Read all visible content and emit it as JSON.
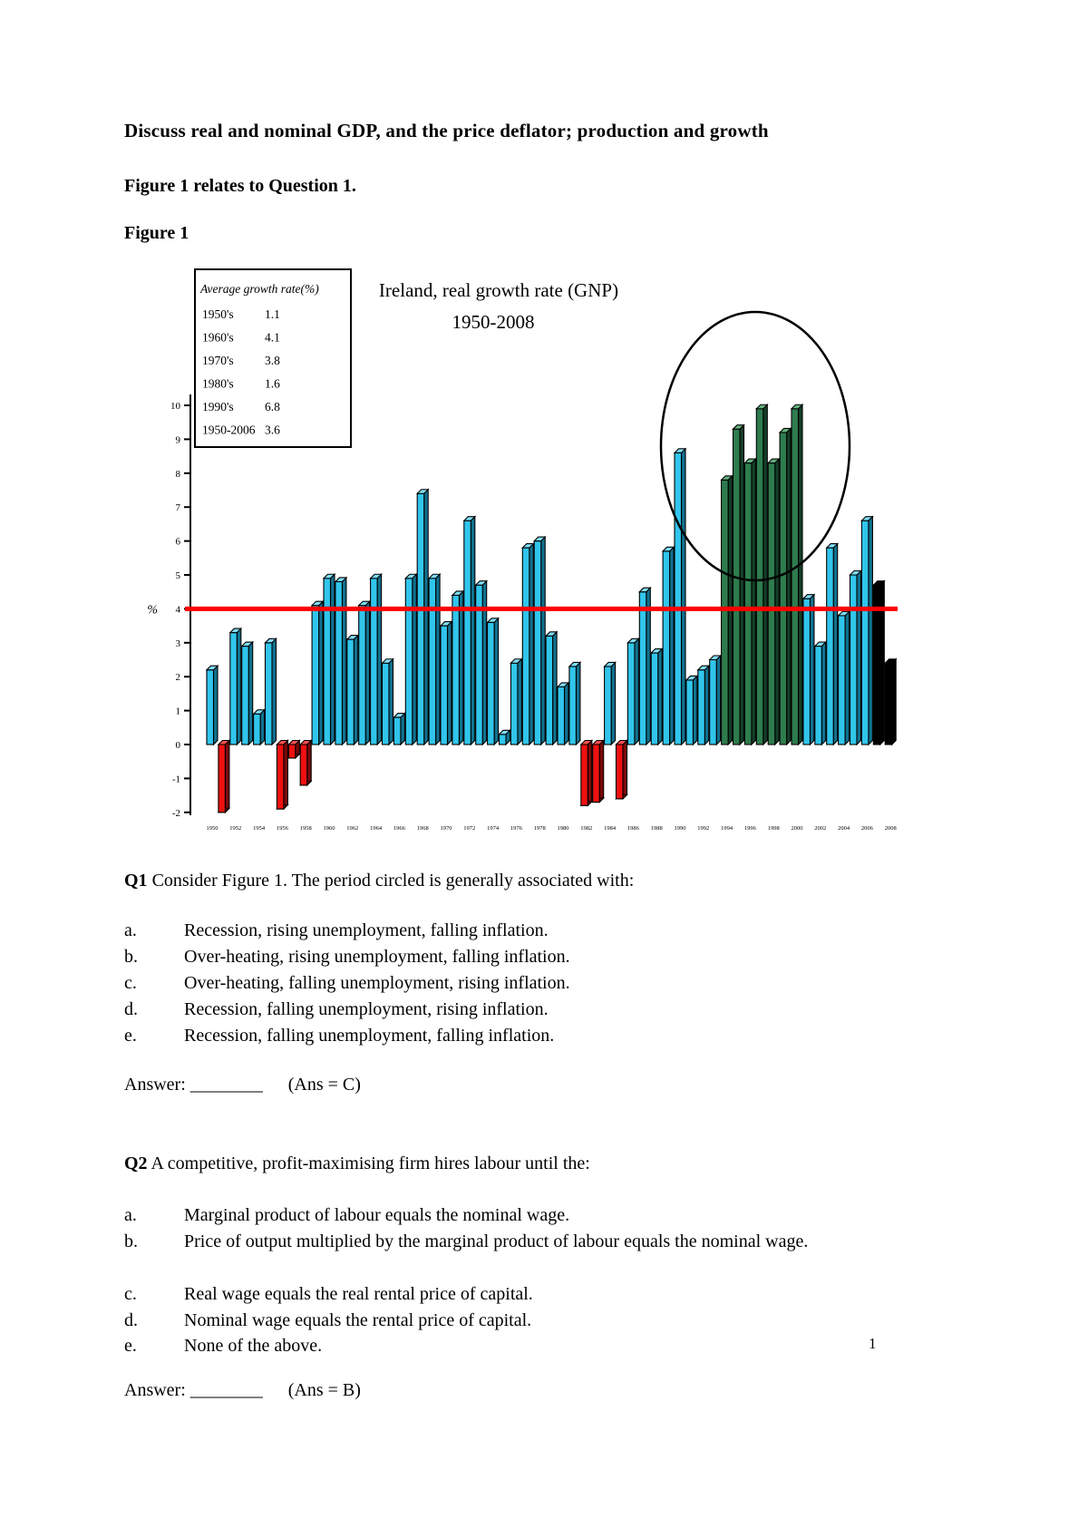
{
  "page": {
    "heading": "Discuss real and nominal GDP, and the price deflator; production and growth",
    "subheading": "Figure 1 relates to Question 1.",
    "figure_label": "Figure 1",
    "page_number": "1"
  },
  "chart": {
    "title_line1": "Ireland, real growth rate (GNP)",
    "title_line2": "1950-2008",
    "y_axis_unit": "%",
    "legend": {
      "header": "Average growth rate(%)",
      "rows": [
        {
          "label": "1950's",
          "value": "1.1"
        },
        {
          "label": "1960's",
          "value": "4.1"
        },
        {
          "label": "1970's",
          "value": "3.8"
        },
        {
          "label": "1980's",
          "value": "1.6"
        },
        {
          "label": "1990's",
          "value": "6.8"
        },
        {
          "label": "1950-2006",
          "value": "3.6"
        }
      ]
    },
    "colors": {
      "cyan": {
        "front": "#31C5EC",
        "side": "#11718F",
        "top": "#7FDDF4"
      },
      "red": {
        "front": "#EE1010",
        "side": "#7C0808",
        "top": "#F4504E"
      },
      "green": {
        "front": "#2E7C4E",
        "side": "#143F27",
        "top": "#63B07E"
      },
      "black": {
        "front": "#000000",
        "side": "#000000",
        "top": "#000000"
      },
      "reference_line": "#FF0000",
      "annotation_circle": "#000000"
    }
  },
  "chart_data": {
    "type": "bar",
    "title": "Ireland, real growth rate (GNP) 1950-2008",
    "xlabel": "",
    "ylabel": "%",
    "ylim": [
      -2,
      10
    ],
    "grid": false,
    "legend_position": "top-left",
    "reference_line": {
      "value": 4,
      "color": "red",
      "meaning": "1950-2006 average growth ~4%"
    },
    "circled_period": "1994-2000 boom (green bars circled)",
    "start_year": 1950,
    "y_ticks": [
      10,
      9,
      8,
      7,
      6,
      5,
      4,
      3,
      2,
      1,
      0,
      -1,
      -2
    ],
    "x_ticks": [
      "1950",
      "1952",
      "1954",
      "1956",
      "1958",
      "1960",
      "1962",
      "1964",
      "1966",
      "1968",
      "1970",
      "1972",
      "1974",
      "1976",
      "1978",
      "1980",
      "1982",
      "1984",
      "1986",
      "1988",
      "1990",
      "1992",
      "1994",
      "1996",
      "1998",
      "2000",
      "2002",
      "2004",
      "2006",
      "2008"
    ],
    "bars": [
      {
        "year": 1950,
        "value": 2.2,
        "color": "cyan"
      },
      {
        "year": 1951,
        "value": -2.0,
        "color": "red"
      },
      {
        "year": 1952,
        "value": 3.3,
        "color": "cyan"
      },
      {
        "year": 1953,
        "value": 2.9,
        "color": "cyan"
      },
      {
        "year": 1954,
        "value": 0.9,
        "color": "cyan"
      },
      {
        "year": 1955,
        "value": 3.0,
        "color": "cyan"
      },
      {
        "year": 1956,
        "value": -1.9,
        "color": "red"
      },
      {
        "year": 1957,
        "value": -0.4,
        "color": "red"
      },
      {
        "year": 1958,
        "value": -1.2,
        "color": "red"
      },
      {
        "year": 1959,
        "value": 4.1,
        "color": "cyan"
      },
      {
        "year": 1960,
        "value": 4.9,
        "color": "cyan"
      },
      {
        "year": 1961,
        "value": 4.8,
        "color": "cyan"
      },
      {
        "year": 1962,
        "value": 3.1,
        "color": "cyan"
      },
      {
        "year": 1963,
        "value": 4.1,
        "color": "cyan"
      },
      {
        "year": 1964,
        "value": 4.9,
        "color": "cyan"
      },
      {
        "year": 1965,
        "value": 2.4,
        "color": "cyan"
      },
      {
        "year": 1966,
        "value": 0.8,
        "color": "cyan"
      },
      {
        "year": 1967,
        "value": 4.9,
        "color": "cyan"
      },
      {
        "year": 1968,
        "value": 7.4,
        "color": "cyan"
      },
      {
        "year": 1969,
        "value": 4.9,
        "color": "cyan"
      },
      {
        "year": 1970,
        "value": 3.5,
        "color": "cyan"
      },
      {
        "year": 1971,
        "value": 4.4,
        "color": "cyan"
      },
      {
        "year": 1972,
        "value": 6.6,
        "color": "cyan"
      },
      {
        "year": 1973,
        "value": 4.7,
        "color": "cyan"
      },
      {
        "year": 1974,
        "value": 3.6,
        "color": "cyan"
      },
      {
        "year": 1975,
        "value": 0.3,
        "color": "cyan"
      },
      {
        "year": 1976,
        "value": 2.4,
        "color": "cyan"
      },
      {
        "year": 1977,
        "value": 5.8,
        "color": "cyan"
      },
      {
        "year": 1978,
        "value": 6.0,
        "color": "cyan"
      },
      {
        "year": 1979,
        "value": 3.2,
        "color": "cyan"
      },
      {
        "year": 1980,
        "value": 1.7,
        "color": "cyan"
      },
      {
        "year": 1981,
        "value": 2.3,
        "color": "cyan"
      },
      {
        "year": 1982,
        "value": -1.8,
        "color": "red"
      },
      {
        "year": 1983,
        "value": -1.7,
        "color": "red"
      },
      {
        "year": 1984,
        "value": 2.3,
        "color": "cyan"
      },
      {
        "year": 1985,
        "value": -1.6,
        "color": "red"
      },
      {
        "year": 1986,
        "value": 3.0,
        "color": "cyan"
      },
      {
        "year": 1987,
        "value": 4.5,
        "color": "cyan"
      },
      {
        "year": 1988,
        "value": 2.7,
        "color": "cyan"
      },
      {
        "year": 1989,
        "value": 5.7,
        "color": "cyan"
      },
      {
        "year": 1990,
        "value": 8.6,
        "color": "cyan"
      },
      {
        "year": 1991,
        "value": 1.9,
        "color": "cyan"
      },
      {
        "year": 1992,
        "value": 2.2,
        "color": "cyan"
      },
      {
        "year": 1993,
        "value": 2.5,
        "color": "cyan"
      },
      {
        "year": 1994,
        "value": 7.8,
        "color": "green"
      },
      {
        "year": 1995,
        "value": 9.3,
        "color": "green"
      },
      {
        "year": 1996,
        "value": 8.3,
        "color": "green"
      },
      {
        "year": 1997,
        "value": 9.9,
        "color": "green"
      },
      {
        "year": 1998,
        "value": 8.3,
        "color": "green"
      },
      {
        "year": 1999,
        "value": 9.2,
        "color": "green"
      },
      {
        "year": 2000,
        "value": 9.9,
        "color": "green"
      },
      {
        "year": 2001,
        "value": 4.3,
        "color": "cyan"
      },
      {
        "year": 2002,
        "value": 2.9,
        "color": "cyan"
      },
      {
        "year": 2003,
        "value": 5.8,
        "color": "cyan"
      },
      {
        "year": 2004,
        "value": 3.8,
        "color": "cyan"
      },
      {
        "year": 2005,
        "value": 5.0,
        "color": "cyan"
      },
      {
        "year": 2006,
        "value": 6.6,
        "color": "cyan"
      },
      {
        "year": 2007,
        "value": 4.7,
        "color": "black"
      },
      {
        "year": 2008,
        "value": 2.4,
        "color": "black"
      }
    ]
  },
  "questions": [
    {
      "number": "Q1",
      "text": " Consider Figure 1.  The period circled is generally associated with:",
      "options": [
        {
          "letter": "a.",
          "text": "Recession, rising unemployment, falling inflation."
        },
        {
          "letter": "b.",
          "text": "Over-heating, rising unemployment, falling inflation."
        },
        {
          "letter": "c.",
          "text": "Over-heating, falling unemployment, rising inflation."
        },
        {
          "letter": "d.",
          "text": "Recession, falling unemployment, rising inflation."
        },
        {
          "letter": "e.",
          "text": "Recession, falling unemployment, falling inflation."
        }
      ],
      "answer_label": "Answer: ________",
      "answer_note": "(Ans = C)"
    },
    {
      "number": "Q2",
      "text": " A competitive, profit-maximising firm hires labour until the:",
      "options": [
        {
          "letter": "a.",
          "text": "Marginal product of labour equals the nominal wage."
        },
        {
          "letter": "b.",
          "text": "Price of output multiplied by the marginal product of labour equals the nominal wage."
        },
        {
          "letter": "c.",
          "text": "Real wage equals the real rental price of capital."
        },
        {
          "letter": "d.",
          "text": "Nominal wage equals the rental price of capital."
        },
        {
          "letter": "e.",
          "text": "None of the above."
        }
      ],
      "answer_label": "Answer: ________",
      "answer_note": "(Ans = B)"
    }
  ]
}
